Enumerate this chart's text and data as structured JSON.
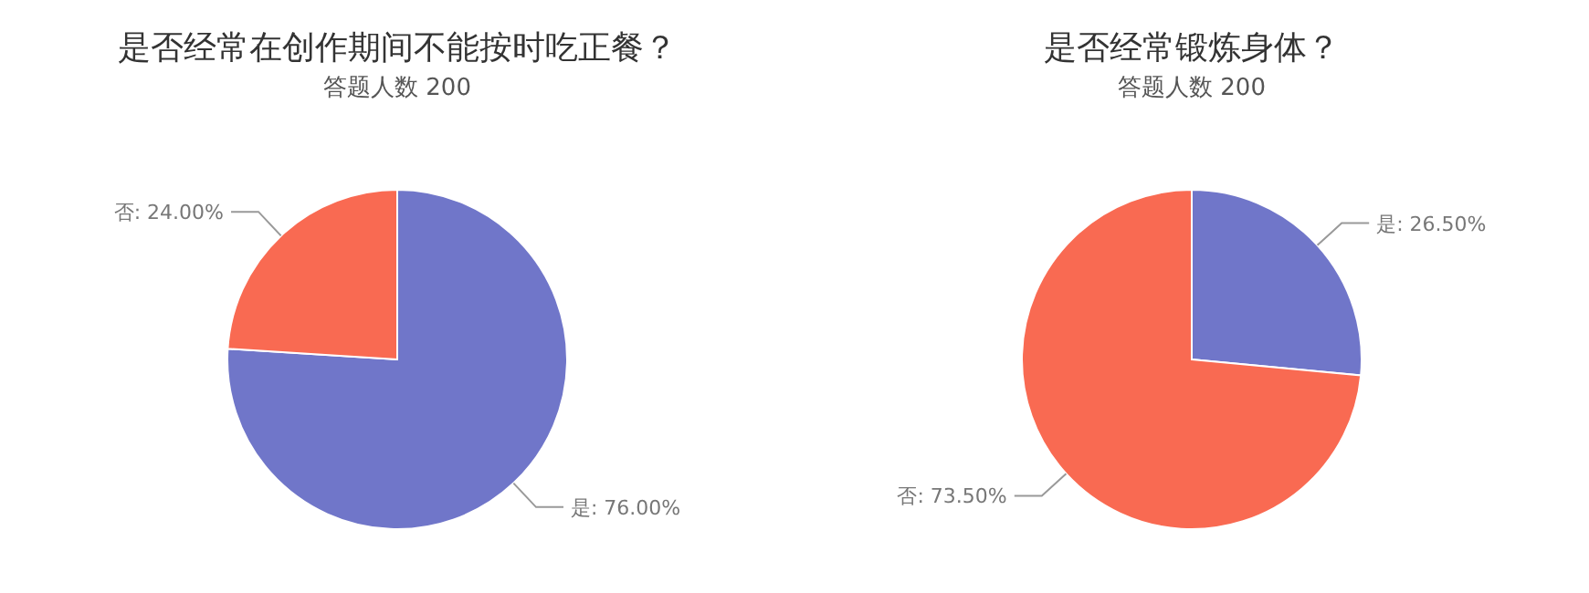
{
  "chart_data": [
    {
      "type": "pie",
      "title": "是否经常在创作期间不能按时吃正餐？",
      "subtitle": "答题人数 200",
      "categories": [
        "是",
        "否"
      ],
      "values": [
        76,
        24
      ],
      "colors": [
        "#7076c9",
        "#f96a52"
      ],
      "value_labels": [
        ": 76.00%",
        ": 24.00%"
      ]
    },
    {
      "type": "pie",
      "title": "是否经常锻炼身体？",
      "subtitle": "答题人数 200",
      "categories": [
        "是",
        "否"
      ],
      "values": [
        26.5,
        73.5
      ],
      "colors": [
        "#7076c9",
        "#f96a52"
      ],
      "value_labels": [
        ": 26.50%",
        ": 73.50%"
      ]
    }
  ]
}
